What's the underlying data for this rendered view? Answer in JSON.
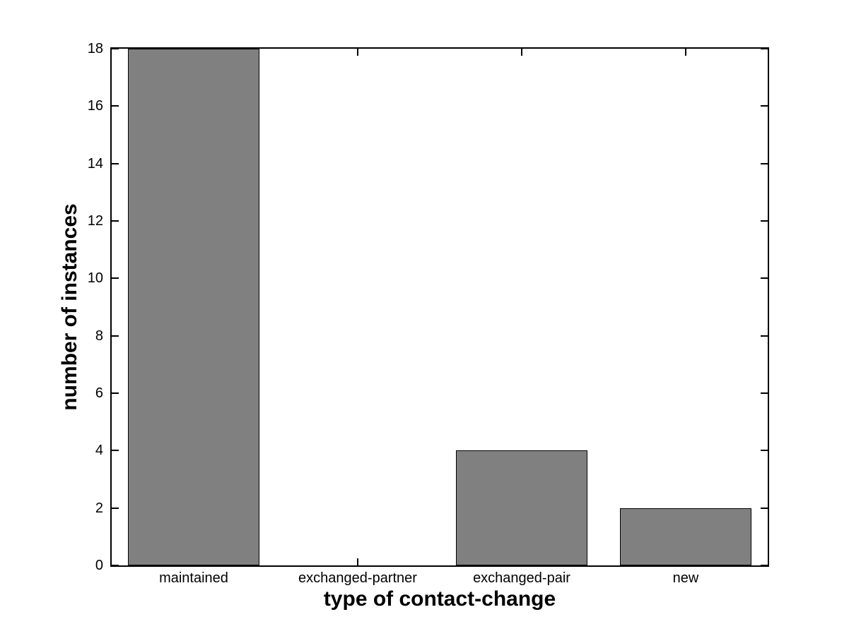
{
  "figure": {
    "background": "#ffffff"
  },
  "chart_data": {
    "type": "bar",
    "title": "",
    "categories": [
      "maintained",
      "exchanged-partner",
      "exchanged-pair",
      "new"
    ],
    "values": [
      18,
      0,
      4,
      2
    ],
    "xlabel": "type of contact-change",
    "ylabel": "number of instances",
    "ylim": [
      0,
      18
    ],
    "yticks": [
      0,
      2,
      4,
      6,
      8,
      10,
      12,
      14,
      16,
      18
    ],
    "ytick_labels": [
      "0",
      "2",
      "4",
      "6",
      "8",
      "10",
      "12",
      "14",
      "16",
      "18"
    ],
    "bar_width_fraction": 0.8,
    "grid": false,
    "tick_direction": "in",
    "colors": {
      "bar_fill": "#808080",
      "bar_edge": "#000000",
      "axis": "#000000",
      "text": "#000000",
      "background": "#ffffff"
    }
  }
}
